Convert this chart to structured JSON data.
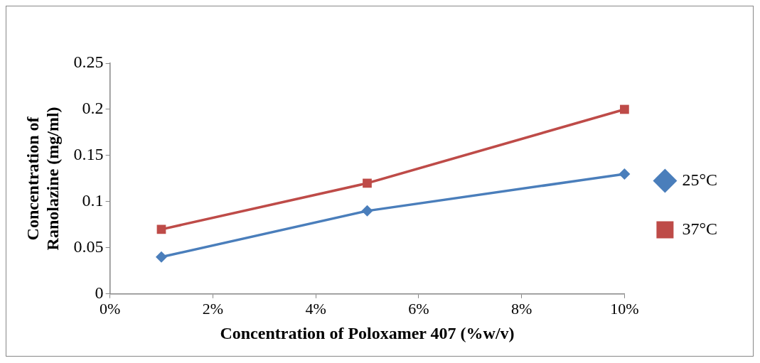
{
  "chart_data": {
    "type": "line",
    "xlabel": "Concentration of Poloxamer 407 (%w/v)",
    "ylabel": "Concentration of Ranolazine (mg/ml)",
    "x": [
      1,
      5,
      10
    ],
    "series": [
      {
        "name": "25°C",
        "color": "#4a7ebb",
        "values": [
          0.04,
          0.09,
          0.13
        ],
        "marker": "diamond"
      },
      {
        "name": "37°C",
        "color": "#be4b48",
        "values": [
          0.07,
          0.12,
          0.2
        ],
        "marker": "square"
      }
    ],
    "xlim": [
      0,
      10
    ],
    "xticks": [
      {
        "value": 0,
        "label": "0%"
      },
      {
        "value": 2,
        "label": "2%"
      },
      {
        "value": 4,
        "label": "4%"
      },
      {
        "value": 6,
        "label": "6%"
      },
      {
        "value": 8,
        "label": "8%"
      },
      {
        "value": 10,
        "label": "10%"
      }
    ],
    "ylim": [
      0,
      0.25
    ],
    "yticks": [
      0,
      0.05,
      0.1,
      0.15,
      0.2,
      0.25
    ],
    "grid": false,
    "legend": "right",
    "line_style": "solid"
  }
}
